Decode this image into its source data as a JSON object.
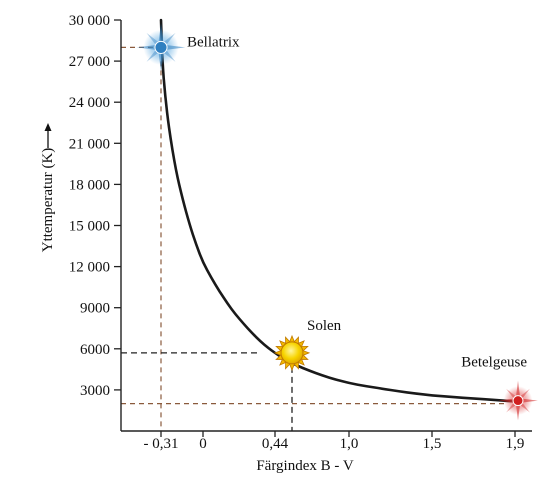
{
  "chart_data": {
    "type": "line",
    "title": "",
    "xlabel": "Färgindex B - V",
    "ylabel": "Yttemperatur (K)",
    "xlim": [
      -0.42,
      1.9
    ],
    "ylim": [
      0,
      30000
    ],
    "x_ticks": [
      -0.31,
      0,
      0.44,
      1.0,
      1.5,
      1.9
    ],
    "x_tick_labels": [
      "- 0,31",
      "0",
      "0,44",
      "1,0",
      "1,5",
      "1,9"
    ],
    "y_ticks": [
      3000,
      6000,
      9000,
      12000,
      15000,
      18000,
      21000,
      24000,
      27000,
      30000
    ],
    "y_tick_labels": [
      "3000",
      "6000",
      "9000",
      "12 000",
      "15 000",
      "18 000",
      "21 000",
      "24 000",
      "27 000",
      "30 000"
    ],
    "grid": false,
    "series": [
      {
        "x": [
          -0.31,
          -0.3,
          -0.28,
          -0.25,
          -0.2,
          -0.15,
          -0.1,
          -0.05,
          0,
          0.05,
          0.1,
          0.15,
          0.2,
          0.25,
          0.3,
          0.35,
          0.4,
          0.44,
          0.5,
          0.6,
          0.7,
          0.8,
          0.9,
          1.0,
          1.1,
          1.2,
          1.3,
          1.4,
          1.5,
          1.6,
          1.7,
          1.8,
          1.9
        ],
        "y": [
          30000,
          27000,
          24500,
          22000,
          19000,
          16900,
          15100,
          13600,
          12300,
          11200,
          10200,
          9300,
          8500,
          7800,
          7150,
          6550,
          6050,
          5700,
          5300,
          4800,
          4400,
          4050,
          3750,
          3500,
          3280,
          3080,
          2900,
          2740,
          2600,
          2480,
          2370,
          2270,
          2150
        ]
      }
    ],
    "stars": [
      {
        "name": "Bellatrix",
        "x": -0.31,
        "y": 28000,
        "color": "#2f7fc0"
      },
      {
        "name": "Solen",
        "x": 0.44,
        "y": 5700,
        "color": "#f5d000"
      },
      {
        "name": "Betelgeuse",
        "x": 1.9,
        "y": 2000,
        "color": "#d02020"
      }
    ]
  },
  "colors": {
    "curve": "#1a1a1a",
    "axis": "#222222",
    "ref_brown": "#8a5a3c",
    "ref_black": "#222222"
  }
}
